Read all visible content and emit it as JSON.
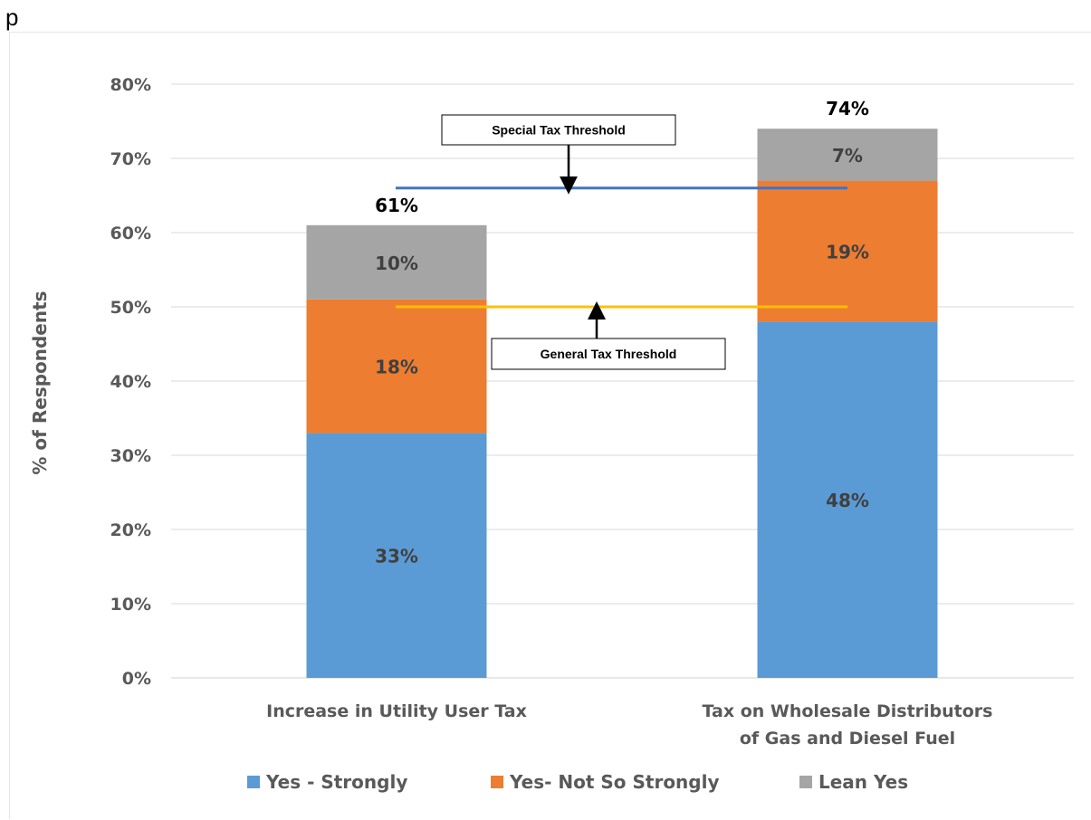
{
  "page_letter": "p",
  "chart_data": {
    "type": "bar",
    "stacked": true,
    "ylabel": "% of Respondents",
    "xlabel": "",
    "ylim": [
      0,
      80
    ],
    "yticks": [
      "0%",
      "10%",
      "20%",
      "30%",
      "40%",
      "50%",
      "60%",
      "70%",
      "80%"
    ],
    "grid": true,
    "legend_position": "bottom",
    "categories": [
      [
        "Increase in Utility User Tax"
      ],
      [
        "Tax on Wholesale Distributors",
        "of Gas and Diesel Fuel"
      ]
    ],
    "series": [
      {
        "name": "Yes - Strongly",
        "color": "#5b9bd5",
        "values": [
          33,
          48
        ],
        "labels": [
          "33%",
          "48%"
        ]
      },
      {
        "name": "Yes- Not So Strongly",
        "color": "#ed7d31",
        "values": [
          18,
          19
        ],
        "labels": [
          "18%",
          "19%"
        ]
      },
      {
        "name": "Lean Yes",
        "color": "#a5a5a5",
        "values": [
          10,
          7
        ],
        "labels": [
          "10%",
          "7%"
        ]
      }
    ],
    "totals": [
      61,
      74
    ],
    "total_labels": [
      "61%",
      "74%"
    ],
    "thresholds": [
      {
        "label": "Special Tax Threshold",
        "value": 66,
        "color": "#4472c4"
      },
      {
        "label": "General Tax Threshold",
        "value": 50,
        "color": "#ffc000"
      }
    ]
  }
}
